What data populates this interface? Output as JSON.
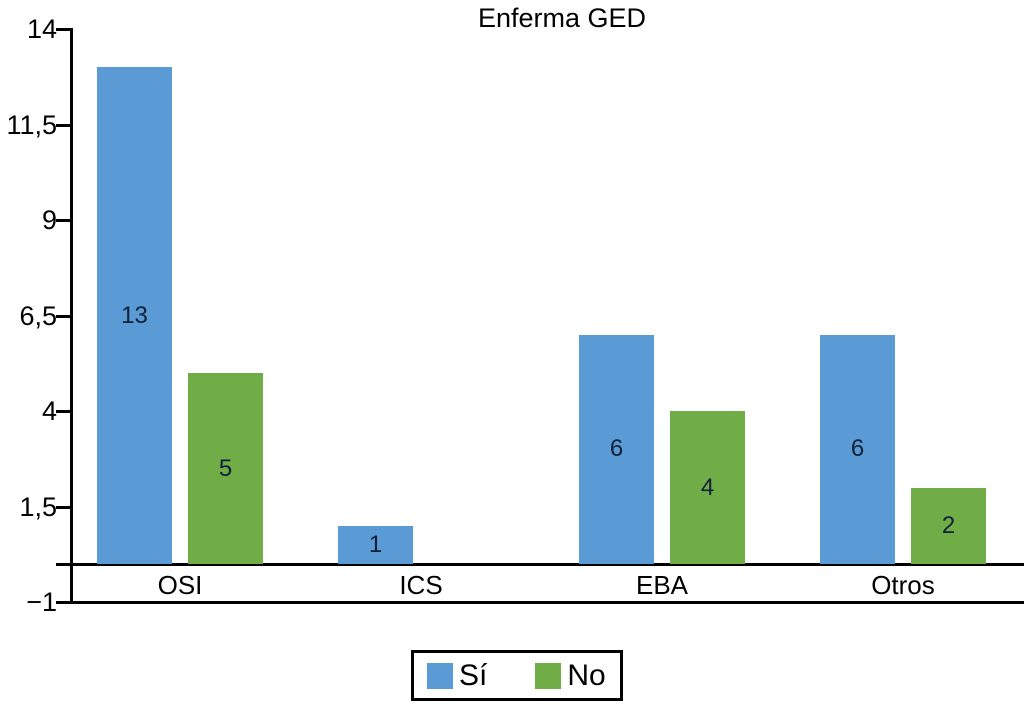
{
  "chart_data": {
    "type": "bar",
    "title": "Enferma GED",
    "categories": [
      "OSI",
      "ICS",
      "EBA",
      "Otros"
    ],
    "series": [
      {
        "name": "Sí",
        "color": "#5b9bd5",
        "values": [
          13,
          1,
          6,
          6
        ]
      },
      {
        "name": "No",
        "color": "#70ad47",
        "values": [
          5,
          0,
          4,
          2
        ]
      }
    ],
    "data_labels": [
      [
        "13",
        "1",
        "6",
        "6"
      ],
      [
        "5",
        "",
        "4",
        "2"
      ]
    ],
    "ylim": [
      -1,
      14
    ],
    "baseline_value": 0,
    "yticks": [
      {
        "value": 14,
        "label": "14"
      },
      {
        "value": 11.5,
        "label": "11,5"
      },
      {
        "value": 9,
        "label": "9"
      },
      {
        "value": 6.5,
        "label": "6,5"
      },
      {
        "value": 4,
        "label": "4"
      },
      {
        "value": 1.5,
        "label": "1,5"
      },
      {
        "value": 0,
        "label": ""
      },
      {
        "value": -1,
        "label": "−1"
      }
    ],
    "grid": false,
    "legend_position": "bottom",
    "background": "#ffffff",
    "axis_color": "#000000",
    "text_color": "#000000"
  }
}
